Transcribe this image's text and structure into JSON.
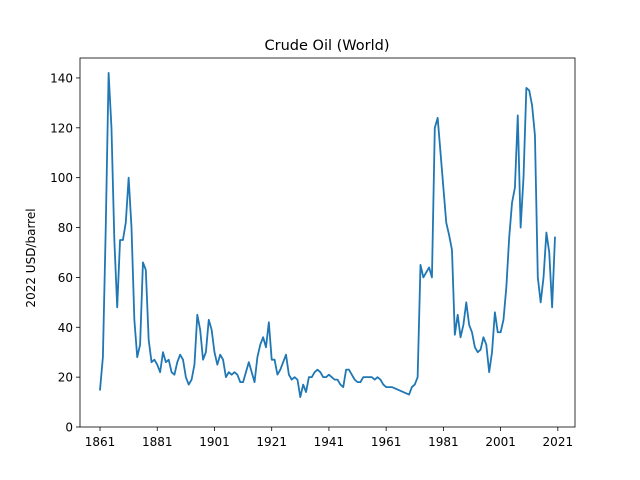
{
  "chart_data": {
    "type": "line",
    "title": "Crude Oil (World)",
    "xlabel": "",
    "ylabel": "2022 USD/barrel",
    "xlim": [
      1854,
      2027
    ],
    "ylim": [
      0,
      148
    ],
    "x_ticks": [
      1861,
      1881,
      1901,
      1921,
      1941,
      1961,
      1981,
      2001,
      2021
    ],
    "y_ticks": [
      0,
      20,
      40,
      60,
      80,
      100,
      120,
      140
    ],
    "grid": false,
    "legend": "none",
    "color": "#1f77b4",
    "series": [
      {
        "points": [
          [
            1861,
            15
          ],
          [
            1862,
            28
          ],
          [
            1863,
            80
          ],
          [
            1864,
            142
          ],
          [
            1865,
            120
          ],
          [
            1866,
            75
          ],
          [
            1867,
            48
          ],
          [
            1868,
            75
          ],
          [
            1869,
            75
          ],
          [
            1870,
            82
          ],
          [
            1871,
            100
          ],
          [
            1872,
            80
          ],
          [
            1873,
            43
          ],
          [
            1874,
            28
          ],
          [
            1875,
            33
          ],
          [
            1876,
            66
          ],
          [
            1877,
            63
          ],
          [
            1878,
            35
          ],
          [
            1879,
            26
          ],
          [
            1880,
            27
          ],
          [
            1881,
            25
          ],
          [
            1882,
            22
          ],
          [
            1883,
            30
          ],
          [
            1884,
            26
          ],
          [
            1885,
            27
          ],
          [
            1886,
            22
          ],
          [
            1887,
            21
          ],
          [
            1888,
            26
          ],
          [
            1889,
            29
          ],
          [
            1890,
            27
          ],
          [
            1891,
            20
          ],
          [
            1892,
            17
          ],
          [
            1893,
            19
          ],
          [
            1894,
            25
          ],
          [
            1895,
            45
          ],
          [
            1896,
            39
          ],
          [
            1897,
            27
          ],
          [
            1898,
            30
          ],
          [
            1899,
            43
          ],
          [
            1900,
            39
          ],
          [
            1901,
            30
          ],
          [
            1902,
            25
          ],
          [
            1903,
            29
          ],
          [
            1904,
            27
          ],
          [
            1905,
            20
          ],
          [
            1906,
            22
          ],
          [
            1907,
            21
          ],
          [
            1908,
            22
          ],
          [
            1909,
            21
          ],
          [
            1910,
            18
          ],
          [
            1911,
            18
          ],
          [
            1912,
            22
          ],
          [
            1913,
            26
          ],
          [
            1914,
            22
          ],
          [
            1915,
            18
          ],
          [
            1916,
            28
          ],
          [
            1917,
            33
          ],
          [
            1918,
            36
          ],
          [
            1919,
            32
          ],
          [
            1920,
            42
          ],
          [
            1921,
            27
          ],
          [
            1922,
            27
          ],
          [
            1923,
            21
          ],
          [
            1924,
            23
          ],
          [
            1925,
            26
          ],
          [
            1926,
            29
          ],
          [
            1927,
            21
          ],
          [
            1928,
            19
          ],
          [
            1929,
            20
          ],
          [
            1930,
            19
          ],
          [
            1931,
            12
          ],
          [
            1932,
            17
          ],
          [
            1933,
            14
          ],
          [
            1934,
            20
          ],
          [
            1935,
            20
          ],
          [
            1936,
            22
          ],
          [
            1937,
            23
          ],
          [
            1938,
            22
          ],
          [
            1939,
            20
          ],
          [
            1940,
            20
          ],
          [
            1941,
            21
          ],
          [
            1942,
            20
          ],
          [
            1943,
            19
          ],
          [
            1944,
            19
          ],
          [
            1945,
            17
          ],
          [
            1946,
            16
          ],
          [
            1947,
            23
          ],
          [
            1948,
            23
          ],
          [
            1949,
            21
          ],
          [
            1950,
            19
          ],
          [
            1951,
            18
          ],
          [
            1952,
            18
          ],
          [
            1953,
            20
          ],
          [
            1954,
            20
          ],
          [
            1955,
            20
          ],
          [
            1956,
            20
          ],
          [
            1957,
            19
          ],
          [
            1958,
            20
          ],
          [
            1959,
            19
          ],
          [
            1960,
            17
          ],
          [
            1961,
            16
          ],
          [
            1962,
            16
          ],
          [
            1963,
            16
          ],
          [
            1964,
            15.5
          ],
          [
            1965,
            15
          ],
          [
            1966,
            14.5
          ],
          [
            1967,
            14
          ],
          [
            1968,
            13.5
          ],
          [
            1969,
            13
          ],
          [
            1970,
            16
          ],
          [
            1971,
            17
          ],
          [
            1972,
            20
          ],
          [
            1973,
            65
          ],
          [
            1974,
            60
          ],
          [
            1975,
            62
          ],
          [
            1976,
            64
          ],
          [
            1977,
            60
          ],
          [
            1978,
            120
          ],
          [
            1979,
            124
          ],
          [
            1980,
            110
          ],
          [
            1981,
            96
          ],
          [
            1982,
            82
          ],
          [
            1983,
            77
          ],
          [
            1984,
            71
          ],
          [
            1985,
            37
          ],
          [
            1986,
            45
          ],
          [
            1987,
            36
          ],
          [
            1988,
            41
          ],
          [
            1989,
            50
          ],
          [
            1990,
            41
          ],
          [
            1991,
            38
          ],
          [
            1992,
            32
          ],
          [
            1993,
            30
          ],
          [
            1994,
            31
          ],
          [
            1995,
            36
          ],
          [
            1996,
            33
          ],
          [
            1997,
            22
          ],
          [
            1998,
            30
          ],
          [
            1999,
            46
          ],
          [
            2000,
            38
          ],
          [
            2001,
            38
          ],
          [
            2002,
            43
          ],
          [
            2003,
            56
          ],
          [
            2004,
            76
          ],
          [
            2005,
            90
          ],
          [
            2006,
            96
          ],
          [
            2007,
            125
          ],
          [
            2008,
            80
          ],
          [
            2009,
            100
          ],
          [
            2010,
            136
          ],
          [
            2011,
            135
          ],
          [
            2012,
            129
          ],
          [
            2013,
            117
          ],
          [
            2014,
            60
          ],
          [
            2015,
            50
          ],
          [
            2016,
            60
          ],
          [
            2017,
            78
          ],
          [
            2018,
            70
          ],
          [
            2019,
            48
          ],
          [
            2020,
            76
          ]
        ]
      }
    ]
  }
}
